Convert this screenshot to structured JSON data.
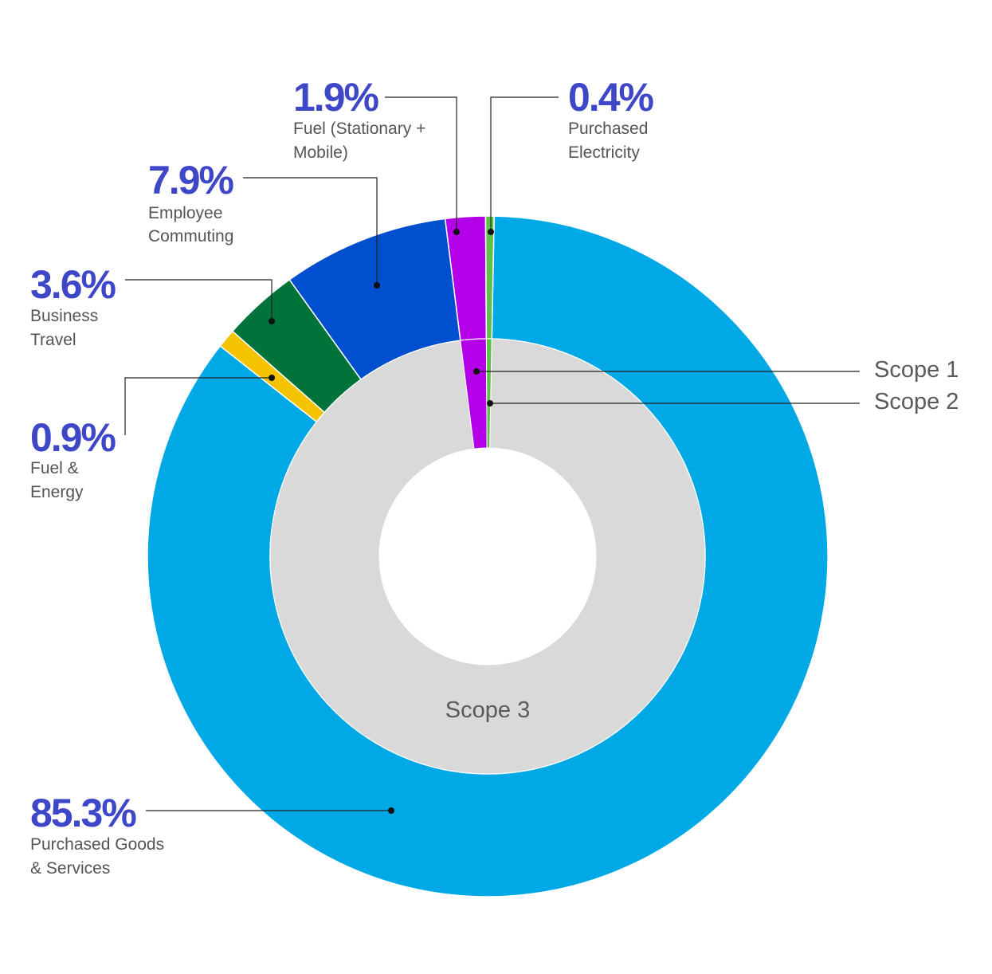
{
  "chart_data": {
    "type": "donut",
    "title": "",
    "outer_ring": [
      {
        "name": "Purchased Goods & Services",
        "label_lines": [
          "Purchased Goods",
          "& Services"
        ],
        "value": 85.3,
        "value_label": "85.3%",
        "color": "#00a9e6",
        "scope": "Scope 3"
      },
      {
        "name": "Fuel & Energy",
        "label_lines": [
          "Fuel &",
          "Energy"
        ],
        "value": 0.9,
        "value_label": "0.9%",
        "color": "#f6c300",
        "scope": "Scope 3"
      },
      {
        "name": "Business Travel",
        "label_lines": [
          "Business",
          "Travel"
        ],
        "value": 3.6,
        "value_label": "3.6%",
        "color": "#00733a",
        "scope": "Scope 3"
      },
      {
        "name": "Employee Commuting",
        "label_lines": [
          "Employee",
          "Commuting"
        ],
        "value": 7.9,
        "value_label": "7.9%",
        "color": "#004fcf",
        "scope": "Scope 3"
      },
      {
        "name": "Fuel (Stationary + Mobile)",
        "label_lines": [
          "Fuel (Stationary +",
          "Mobile)"
        ],
        "value": 1.9,
        "value_label": "1.9%",
        "color": "#b300e8",
        "scope": "Scope 1"
      },
      {
        "name": "Purchased Electricity",
        "label_lines": [
          "Purchased",
          "Electricity"
        ],
        "value": 0.4,
        "value_label": "0.4%",
        "color": "#5ec24a",
        "scope": "Scope 2"
      }
    ],
    "inner_ring": [
      {
        "name": "Scope 3",
        "value": 97.7,
        "color": "#d9d9d9"
      },
      {
        "name": "Scope 1",
        "value": 1.9,
        "color": "#b300e8"
      },
      {
        "name": "Scope 2",
        "value": 0.4,
        "color": "#5ec24a"
      }
    ],
    "accent_color": "#3f47c9",
    "label_color": "#555555",
    "scope_label_color": "#5a5a5a"
  }
}
